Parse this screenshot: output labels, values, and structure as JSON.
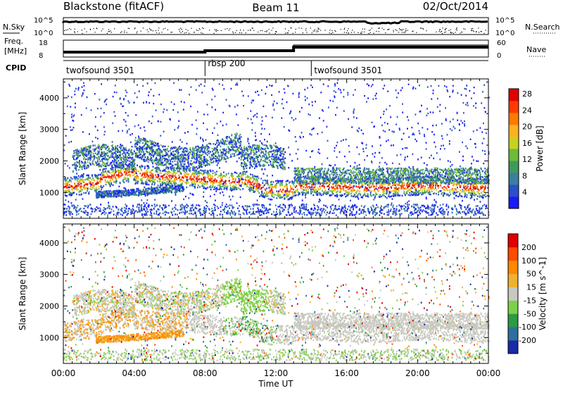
{
  "header": {
    "station": "Blackstone (fitACF)",
    "beam": "Beam 11",
    "date": "02/Oct/2014"
  },
  "noise_panel": {
    "left_label": "N.Sky",
    "right_label": "N.Search",
    "left_ticks": [
      "10^5",
      "10^0"
    ],
    "right_ticks": [
      "10^5",
      "10^0"
    ]
  },
  "freq_panel": {
    "left_label": "Freq.",
    "left_unit": "[MHz]",
    "left_ticks": [
      "18",
      "8"
    ],
    "right_label": "Nave",
    "right_ticks": [
      "60",
      "0"
    ]
  },
  "cpid_panel": {
    "label": "CPID",
    "segments": [
      {
        "name": "twofsound 3501",
        "start_hour": 0,
        "end_hour": 8
      },
      {
        "name": "rbsp 200",
        "start_hour": 8,
        "end_hour": 14
      },
      {
        "name": "twofsound 3501",
        "start_hour": 14,
        "end_hour": 24
      }
    ]
  },
  "chart_data": [
    {
      "type": "heatmap",
      "title": "",
      "ylabel": "Slant Range [km]",
      "ylim": [
        180,
        4600
      ],
      "y_ticks": [
        "1000",
        "2000",
        "3000",
        "4000"
      ],
      "xlim": [
        0,
        24
      ],
      "colorbar": {
        "label": "Power [dB]",
        "ticks": [
          "4",
          "8",
          "12",
          "16",
          "20",
          "24",
          "28"
        ],
        "colors": [
          "#1a1aff",
          "#2a4fc8",
          "#3a7fa0",
          "#3f9a5a",
          "#6dbb3a",
          "#c8d21e",
          "#ffb01e",
          "#ff7a00",
          "#ff3a00",
          "#e00000"
        ]
      }
    },
    {
      "type": "heatmap",
      "title": "",
      "ylabel": "Slant Range [km]",
      "ylim": [
        180,
        4600
      ],
      "y_ticks": [
        "1000",
        "2000",
        "3000",
        "4000"
      ],
      "xlim": [
        0,
        24
      ],
      "colorbar": {
        "label": "Velocity [m s^-1]",
        "ticks": [
          "200",
          "100",
          "50",
          "15",
          "-15",
          "-50",
          "-100",
          "-200"
        ],
        "colors": [
          "#1a2aa8",
          "#2e6f9e",
          "#2d9a45",
          "#7ed04a",
          "#c8c8c0",
          "#f0b030",
          "#ff8800",
          "#ff4a00",
          "#e00000"
        ]
      }
    }
  ],
  "x_axis": {
    "label": "Time UT",
    "ticks": [
      "00:00",
      "04:00",
      "08:00",
      "12:00",
      "16:00",
      "20:00",
      "00:00"
    ]
  }
}
